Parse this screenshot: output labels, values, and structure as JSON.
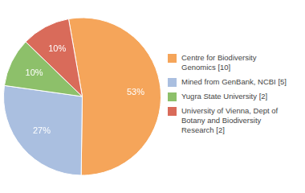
{
  "chart_data": {
    "type": "pie",
    "categories": [
      "Centre for Biodiversity\nGenomics [10]",
      "Mined from GenBank, NCBI [5]",
      "Yugra State University [2]",
      "University of Vienna, Dept of\nBotany and Biodiversity\nResearch [2]"
    ],
    "values": [
      53,
      27,
      10,
      10
    ],
    "value_labels": [
      "53%",
      "27%",
      "10%",
      "10%"
    ],
    "colors": [
      "#F5A55A",
      "#AABFE0",
      "#8DC06A",
      "#D96B5A"
    ],
    "data_labels": true,
    "legend": "right"
  }
}
